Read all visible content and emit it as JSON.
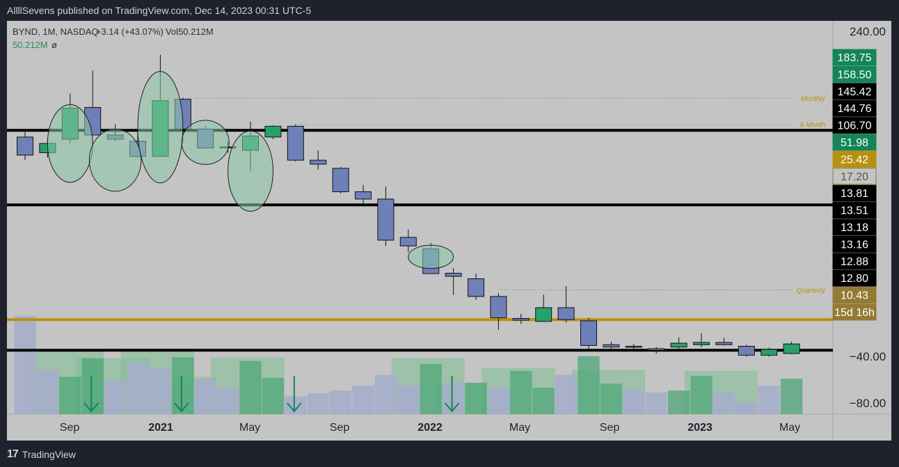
{
  "header": {
    "published_text": "AllllSevens published on TradingView.com, Dec 14, 2023 00:31 UTC-5"
  },
  "footer": {
    "brand": "TradingView",
    "logo_text": "17"
  },
  "chart_data": {
    "type": "candlestick",
    "legend": {
      "symbol_line": "BYND, 1M, NASDAQ",
      "change": "+3.14 (+43.07%)",
      "volume": "Vol50.212M",
      "volume_line": "50.212M",
      "volume_symbol": "ø"
    },
    "price_scale": {
      "type": "log",
      "ticks": [
        "240.00"
      ]
    },
    "volume_scale": {
      "ticks": [
        "−40.00",
        "−80.00"
      ]
    },
    "price_labels": [
      {
        "text": "183.75",
        "bg": "#138556",
        "fg": "#ffffff"
      },
      {
        "text": "158.50",
        "bg": "#138556",
        "fg": "#ffffff"
      },
      {
        "text": "145.42",
        "bg": "#000000",
        "fg": "#ffffff"
      },
      {
        "text": "144.76",
        "bg": "#000000",
        "fg": "#ffffff"
      },
      {
        "text": "106.70",
        "bg": "#000000",
        "fg": "#ffffff"
      },
      {
        "text": "51.98",
        "bg": "#138556",
        "fg": "#ffffff"
      },
      {
        "text": "25.42",
        "bg": "#b8900f",
        "fg": "#ffffff"
      },
      {
        "text": "17.20",
        "bg": "#c4c4c4",
        "fg": "#555555",
        "border": "#8a7a3e"
      },
      {
        "text": "13.81",
        "bg": "#000000",
        "fg": "#ffffff"
      },
      {
        "text": "13.51",
        "bg": "#000000",
        "fg": "#ffffff"
      },
      {
        "text": "13.18",
        "bg": "#000000",
        "fg": "#ffffff"
      },
      {
        "text": "13.16",
        "bg": "#000000",
        "fg": "#ffffff"
      },
      {
        "text": "12.88",
        "bg": "#000000",
        "fg": "#ffffff"
      },
      {
        "text": "12.80",
        "bg": "#000000",
        "fg": "#ffffff"
      },
      {
        "text": "10.43",
        "bg": "#947a35",
        "fg": "#ffffff"
      },
      {
        "text": "15d 16h",
        "bg": "#947a35",
        "fg": "#ffffff"
      }
    ],
    "time_axis": [
      "Sep",
      "2021",
      "May",
      "Sep",
      "2022",
      "May",
      "Sep",
      "2023",
      "May"
    ],
    "horizontal_lines": [
      {
        "price": 106.7,
        "color": "#000000",
        "style": "solid"
      },
      {
        "price": 51.98,
        "color": "#000000",
        "style": "solid"
      },
      {
        "price": 17.2,
        "color": "#b8900f",
        "style": "solid"
      },
      {
        "price": 12.8,
        "color": "#000000",
        "style": "solid"
      }
    ],
    "annotations": [
      {
        "text": "Monthly",
        "price": 145.42,
        "from_index": 7
      },
      {
        "text": "6 Month",
        "price": 113.0,
        "from_index": 12
      },
      {
        "text": "Quarterly",
        "price": 22.9,
        "from_index": 21
      }
    ],
    "colors": {
      "up": "#26a269",
      "down": "#6f7fb8",
      "highlight": "#8dc9a8"
    },
    "candles": [
      {
        "o": 100,
        "h": 108,
        "l": 80,
        "c": 84
      },
      {
        "o": 86,
        "h": 99,
        "l": 82,
        "c": 94
      },
      {
        "o": 98,
        "h": 152,
        "l": 94,
        "c": 132
      },
      {
        "o": 133,
        "h": 190,
        "l": 104,
        "c": 102
      },
      {
        "o": 102,
        "h": 113,
        "l": 96,
        "c": 98
      },
      {
        "o": 96,
        "h": 114,
        "l": 82,
        "c": 83
      },
      {
        "o": 83,
        "h": 221,
        "l": 83,
        "c": 142
      },
      {
        "o": 144,
        "h": 146,
        "l": 94,
        "c": 108
      },
      {
        "o": 108,
        "h": 112,
        "l": 89,
        "c": 90
      },
      {
        "o": 90,
        "h": 96,
        "l": 86,
        "c": 91
      },
      {
        "o": 88,
        "h": 116,
        "l": 72,
        "c": 101
      },
      {
        "o": 100,
        "h": 112,
        "l": 98,
        "c": 111
      },
      {
        "o": 111,
        "h": 113,
        "l": 79,
        "c": 80
      },
      {
        "o": 80,
        "h": 88,
        "l": 73,
        "c": 77
      },
      {
        "o": 74,
        "h": 75,
        "l": 58,
        "c": 59
      },
      {
        "o": 59,
        "h": 63,
        "l": 52,
        "c": 55
      },
      {
        "o": 55,
        "h": 62,
        "l": 35,
        "c": 37
      },
      {
        "o": 38,
        "h": 41,
        "l": 33,
        "c": 35
      },
      {
        "o": 34,
        "h": 36,
        "l": 28,
        "c": 26.8
      },
      {
        "o": 26.9,
        "h": 28.3,
        "l": 21.8,
        "c": 26.1
      },
      {
        "o": 25.5,
        "h": 26.8,
        "l": 20.8,
        "c": 21.5
      },
      {
        "o": 21.5,
        "h": 22.2,
        "l": 15.6,
        "c": 17.5
      },
      {
        "o": 17.4,
        "h": 18.2,
        "l": 16.5,
        "c": 17.1
      },
      {
        "o": 16.9,
        "h": 21.9,
        "l": 16.8,
        "c": 19.3
      },
      {
        "o": 19.3,
        "h": 23.8,
        "l": 16.7,
        "c": 17.2
      },
      {
        "o": 17.0,
        "h": 17.5,
        "l": 12.8,
        "c": 13.4
      },
      {
        "o": 13.5,
        "h": 13.9,
        "l": 13.0,
        "c": 13.2
      },
      {
        "o": 13.2,
        "h": 13.6,
        "l": 12.8,
        "c": 13.3
      },
      {
        "o": 13.0,
        "h": 13.2,
        "l": 12.4,
        "c": 12.8
      },
      {
        "o": 13.2,
        "h": 14.5,
        "l": 12.8,
        "c": 13.7
      },
      {
        "o": 13.5,
        "h": 15.1,
        "l": 13.2,
        "c": 13.8
      },
      {
        "o": 13.8,
        "h": 14.4,
        "l": 13.4,
        "c": 13.5
      },
      {
        "o": 13.3,
        "h": 13.5,
        "l": 12.0,
        "c": 12.2
      },
      {
        "o": 12.2,
        "h": 13.1,
        "l": 12.0,
        "c": 12.9
      },
      {
        "o": 12.4,
        "h": 13.9,
        "l": 12.3,
        "c": 13.6
      }
    ],
    "volume": [
      {
        "v": 100,
        "up": false
      },
      {
        "v": 45,
        "up": false
      },
      {
        "v": 38,
        "up": true
      },
      {
        "v": 57,
        "up": true
      },
      {
        "v": 34,
        "up": false
      },
      {
        "v": 53,
        "up": false
      },
      {
        "v": 46,
        "up": false
      },
      {
        "v": 58,
        "up": true
      },
      {
        "v": 35,
        "up": false
      },
      {
        "v": 26,
        "up": false
      },
      {
        "v": 54,
        "up": true
      },
      {
        "v": 37,
        "up": true
      },
      {
        "v": 18,
        "up": false
      },
      {
        "v": 21,
        "up": false
      },
      {
        "v": 24,
        "up": false
      },
      {
        "v": 29,
        "up": false
      },
      {
        "v": 40,
        "up": false
      },
      {
        "v": 29,
        "up": false
      },
      {
        "v": 51,
        "up": true
      },
      {
        "v": 32,
        "up": false
      },
      {
        "v": 32,
        "up": true
      },
      {
        "v": 27,
        "up": false
      },
      {
        "v": 44,
        "up": true
      },
      {
        "v": 27,
        "up": true
      },
      {
        "v": 40,
        "up": false
      },
      {
        "v": 59,
        "up": true
      },
      {
        "v": 31,
        "up": true
      },
      {
        "v": 25,
        "up": false
      },
      {
        "v": 22,
        "up": false
      },
      {
        "v": 24,
        "up": true
      },
      {
        "v": 39,
        "up": true
      },
      {
        "v": 22,
        "up": false
      },
      {
        "v": 12,
        "up": false
      },
      {
        "v": 29,
        "up": false
      },
      {
        "v": 36,
        "up": true
      }
    ],
    "price_highlight_ellipses": [
      {
        "index": 2,
        "price": 94.0,
        "r_bars": 1.0,
        "r_price": 1.5
      },
      {
        "index": 4,
        "price": 80.0,
        "r_bars": 1.15,
        "r_price": 1.2
      },
      {
        "index": 6,
        "price": 110.0,
        "r_bars": 1.0,
        "r_price": 2.15
      },
      {
        "index": 8,
        "price": 95.0,
        "r_bars": 1.05,
        "r_price": 0.85
      },
      {
        "index": 10,
        "price": 72.0,
        "r_bars": 1.0,
        "r_price": 1.55
      },
      {
        "index": 18,
        "price": 31.5,
        "r_bars": 1.0,
        "r_price": 0.45
      }
    ],
    "volume_highlight_boxes": [
      {
        "from_index": 1,
        "to_index": 3,
        "v": 64
      },
      {
        "from_index": 3,
        "to_index": 5,
        "v": 57
      },
      {
        "from_index": 5,
        "to_index": 7,
        "v": 67
      },
      {
        "from_index": 7,
        "to_index": 8,
        "v": 38
      },
      {
        "from_index": 9,
        "to_index": 11,
        "v": 58
      },
      {
        "from_index": 17,
        "to_index": 19,
        "v": 57
      },
      {
        "from_index": 19,
        "to_index": 20,
        "v": 31
      },
      {
        "from_index": 21,
        "to_index": 23,
        "v": 47
      },
      {
        "from_index": 25,
        "to_index": 27,
        "v": 45
      },
      {
        "from_index": 30,
        "to_index": 32,
        "v": 44
      }
    ],
    "volume_arrows": [
      3,
      7,
      12,
      19
    ]
  }
}
